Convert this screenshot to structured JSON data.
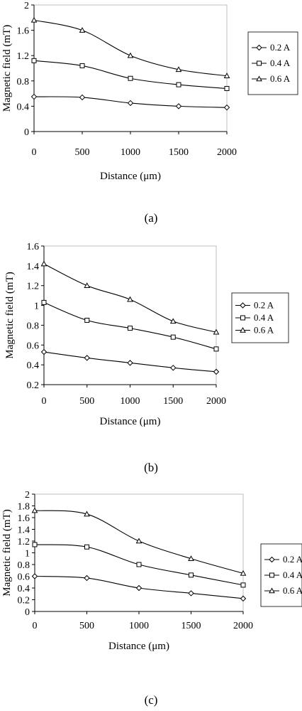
{
  "chart_data": [
    {
      "type": "line",
      "panel_label": "(a)",
      "xlabel": "Distance (μm)",
      "ylabel": "Magnetic field (mT)",
      "x": [
        0,
        500,
        1000,
        1500,
        2000
      ],
      "xticks": [
        "0",
        "500",
        "1000",
        "1500",
        "2000"
      ],
      "yticks": [
        "0",
        "0.4",
        "0.8",
        "1.2",
        "1.6",
        "2"
      ],
      "ylim": [
        0,
        2
      ],
      "grid": false,
      "legend_position": "right",
      "series": [
        {
          "name": "0.2 A",
          "marker": "diamond",
          "values": [
            0.55,
            0.54,
            0.45,
            0.4,
            0.38
          ]
        },
        {
          "name": "0.4 A",
          "marker": "square",
          "values": [
            1.12,
            1.04,
            0.84,
            0.74,
            0.68
          ]
        },
        {
          "name": "0.6 A",
          "marker": "triangle",
          "values": [
            1.76,
            1.6,
            1.2,
            0.98,
            0.88
          ]
        }
      ]
    },
    {
      "type": "line",
      "panel_label": "(b)",
      "xlabel": "Distance (μm)",
      "ylabel": "Magnetic field (mT)",
      "x": [
        0,
        500,
        1000,
        1500,
        2000
      ],
      "xticks": [
        "0",
        "500",
        "1000",
        "1500",
        "2000"
      ],
      "yticks": [
        "0.2",
        "0.4",
        "0.6",
        "0.8",
        "1",
        "1.2",
        "1.4",
        "1.6"
      ],
      "ylim": [
        0.2,
        1.6
      ],
      "grid": false,
      "legend_position": "right",
      "series": [
        {
          "name": "0.2 A",
          "marker": "diamond",
          "values": [
            0.53,
            0.47,
            0.42,
            0.37,
            0.33
          ]
        },
        {
          "name": "0.4 A",
          "marker": "square",
          "values": [
            1.03,
            0.85,
            0.77,
            0.68,
            0.56
          ]
        },
        {
          "name": "0.6 A",
          "marker": "triangle",
          "values": [
            1.42,
            1.2,
            1.06,
            0.84,
            0.73
          ]
        }
      ]
    },
    {
      "type": "line",
      "panel_label": "(c)",
      "xlabel": "Distance (μm)",
      "ylabel": "Magnetic field (mT)",
      "x": [
        0,
        500,
        1000,
        1500,
        2000
      ],
      "xticks": [
        "0",
        "500",
        "1000",
        "1500",
        "2000"
      ],
      "yticks": [
        "0",
        "0.2",
        "0.4",
        "0.6",
        "0.8",
        "1",
        "1.2",
        "1.4",
        "1.6",
        "1.8",
        "2"
      ],
      "ylim": [
        0,
        2
      ],
      "grid": false,
      "legend_position": "right",
      "series": [
        {
          "name": "0.2 A",
          "marker": "diamond",
          "values": [
            0.6,
            0.57,
            0.4,
            0.31,
            0.22
          ]
        },
        {
          "name": "0.4 A",
          "marker": "square",
          "values": [
            1.14,
            1.1,
            0.8,
            0.62,
            0.45
          ]
        },
        {
          "name": "0.6 A",
          "marker": "triangle",
          "values": [
            1.72,
            1.66,
            1.2,
            0.9,
            0.65
          ]
        }
      ]
    }
  ]
}
